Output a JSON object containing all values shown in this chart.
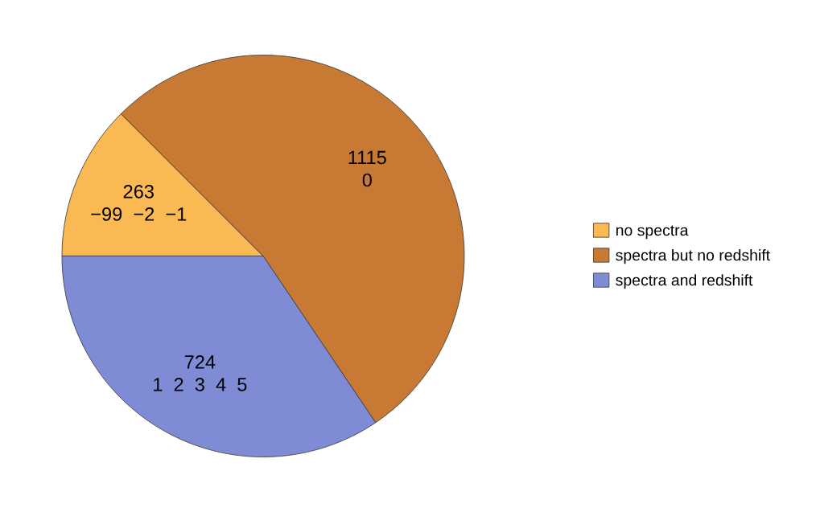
{
  "chart_data": {
    "type": "pie",
    "categories": [
      "no spectra",
      "spectra but no redshift",
      "spectra and redshift"
    ],
    "values": [
      263,
      1115,
      724
    ],
    "colors": [
      "#fbb954",
      "#c87933",
      "#7f8cd5"
    ],
    "value_labels": [
      "263\n−99  −2  −1",
      "1115\n0",
      "724\n1  2  3  4  5"
    ],
    "legend": "right"
  }
}
